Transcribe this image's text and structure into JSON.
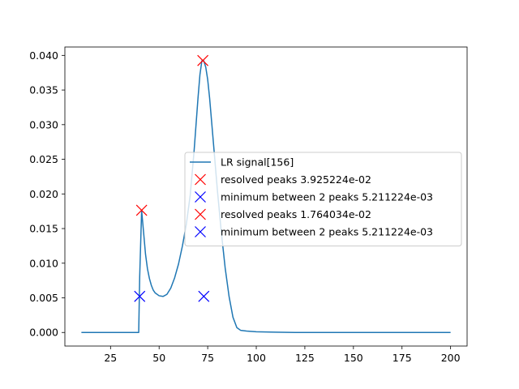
{
  "chart_data": {
    "type": "line",
    "title": "",
    "xlabel": "",
    "ylabel": "",
    "xlim": [
      1.5,
      208.5
    ],
    "ylim": [
      -0.00196,
      0.04121
    ],
    "xticks": [
      25,
      50,
      75,
      100,
      125,
      150,
      175,
      200
    ],
    "xtick_labels": [
      "25",
      "50",
      "75",
      "100",
      "125",
      "150",
      "175",
      "200"
    ],
    "yticks": [
      0.0,
      0.005,
      0.01,
      0.015,
      0.02,
      0.025,
      0.03,
      0.035,
      0.04
    ],
    "ytick_labels": [
      "0.000",
      "0.005",
      "0.010",
      "0.015",
      "0.020",
      "0.025",
      "0.030",
      "0.035",
      "0.040"
    ],
    "grid": false,
    "legend_position": "right",
    "line_color": "#1f77b4",
    "series": [
      {
        "name": "LR signal[156]",
        "kind": "line",
        "color": "#1f77b4",
        "x": [
          10,
          20,
          30,
          38,
          39.5,
          40,
          41,
          42,
          43,
          44,
          45,
          46,
          47,
          48,
          50,
          52,
          54,
          56,
          58,
          60,
          62,
          64,
          66,
          68,
          70,
          71,
          72,
          73,
          74,
          75,
          76,
          78,
          80,
          82,
          84,
          86,
          88,
          90,
          92,
          95,
          100,
          110,
          120,
          140,
          160,
          180,
          200
        ],
        "y": [
          0.0,
          0.0,
          0.0,
          0.0,
          0.0,
          0.008,
          0.0176,
          0.0145,
          0.0113,
          0.0092,
          0.0078,
          0.0068,
          0.0061,
          0.0057,
          0.0053,
          0.0052,
          0.0055,
          0.0064,
          0.0079,
          0.0099,
          0.0125,
          0.0156,
          0.0198,
          0.0262,
          0.0338,
          0.0372,
          0.0392,
          0.0392,
          0.0383,
          0.0365,
          0.0338,
          0.0272,
          0.0205,
          0.0145,
          0.0093,
          0.0052,
          0.0022,
          0.0007,
          0.0003,
          0.0002,
          0.0001,
          5e-05,
          0.0,
          0.0,
          0.0,
          0.0,
          0.0
        ]
      },
      {
        "name": "resolved peaks 3.925224e-02",
        "kind": "marker",
        "color": "#ff0000",
        "x": [
          72.5
        ],
        "y": [
          0.03925224
        ]
      },
      {
        "name": "minimum between 2 peaks 5.211224e-03",
        "kind": "marker",
        "color": "#0000ff",
        "x": [
          73
        ],
        "y": [
          0.005211224
        ]
      },
      {
        "name": "resolved peaks 1.764034e-02",
        "kind": "marker",
        "color": "#ff0000",
        "x": [
          41
        ],
        "y": [
          0.01764034
        ]
      },
      {
        "name": "minimum between 2 peaks 5.211224e-03",
        "kind": "marker",
        "color": "#0000ff",
        "x": [
          40
        ],
        "y": [
          0.005211224
        ]
      }
    ]
  }
}
